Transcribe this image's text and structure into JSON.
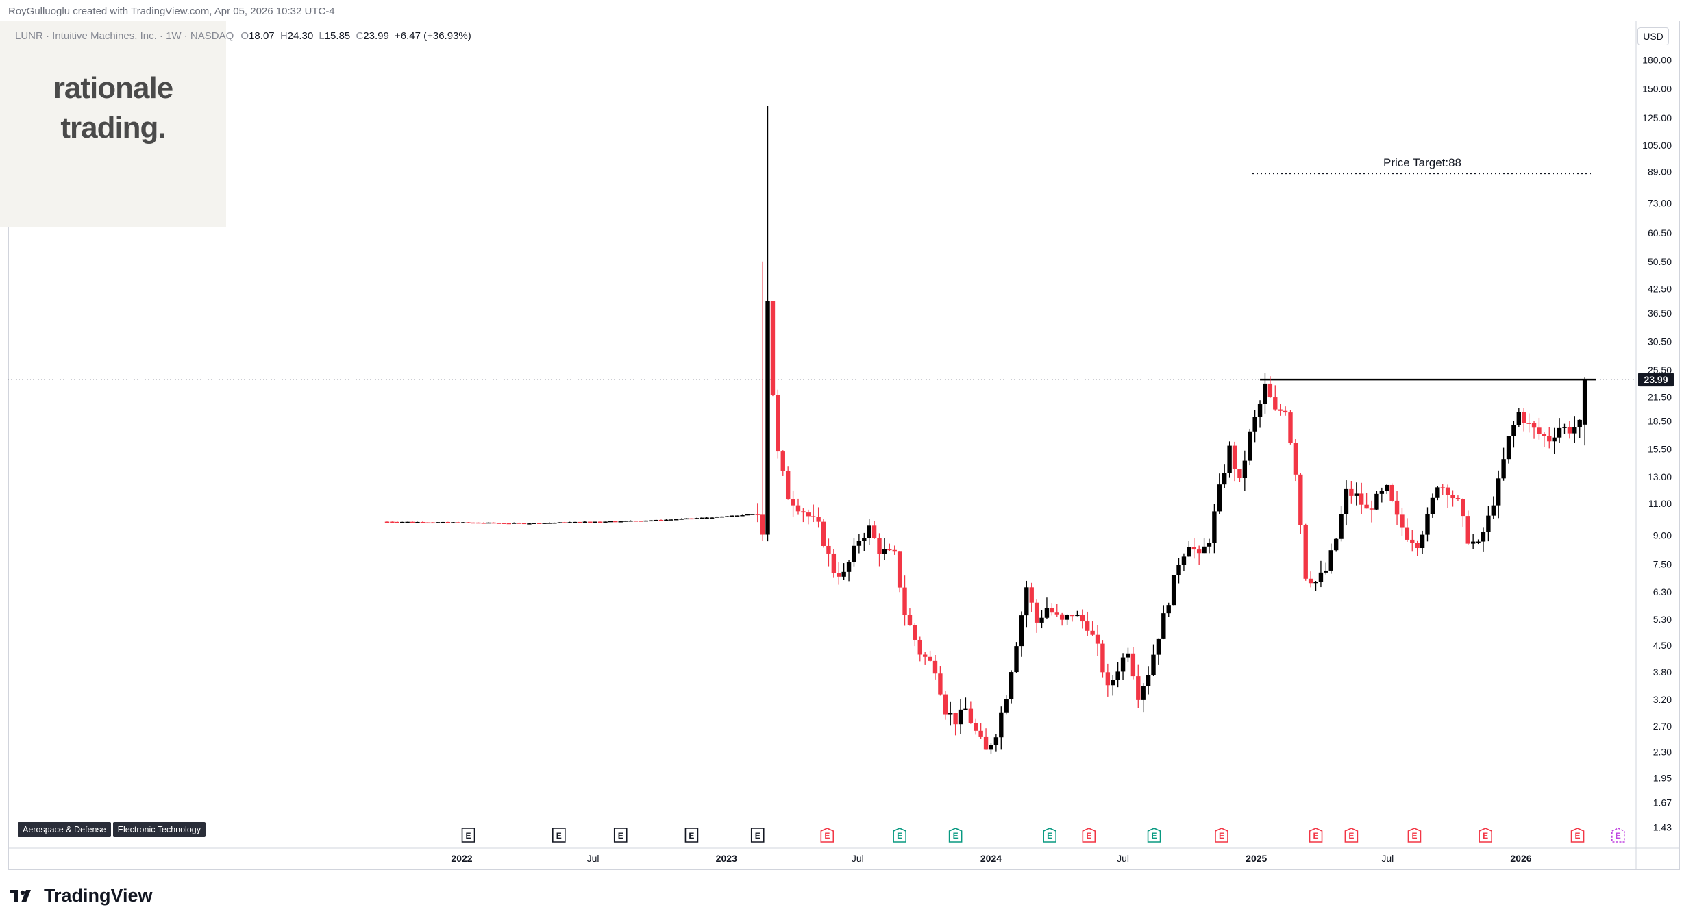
{
  "header": {
    "created_by": "RoyGulluoglu created with TradingView.com, Apr 05, 2026 10:32 UTC-4"
  },
  "legend": {
    "symbol": "LUNR · Intuitive Machines, Inc. · 1W · NASDAQ",
    "open_label": "O",
    "open": "18.07",
    "high_label": "H",
    "high": "24.30",
    "low_label": "L",
    "low": "15.85",
    "close_label": "C",
    "close": "23.99",
    "change": "+6.47 (+36.93%)"
  },
  "logo": {
    "line1": "rationale",
    "line2": "trading."
  },
  "tags": [
    "Aerospace & Defense",
    "Electronic Technology"
  ],
  "axis": {
    "currency": "USD",
    "last_price": "23.99",
    "price_ticks": [
      "180.00",
      "150.00",
      "125.00",
      "105.00",
      "89.00",
      "73.00",
      "60.50",
      "50.50",
      "42.50",
      "36.50",
      "30.50",
      "25.50",
      "21.50",
      "18.50",
      "15.50",
      "13.00",
      "11.00",
      "9.00",
      "7.50",
      "6.30",
      "5.30",
      "4.50",
      "3.80",
      "3.20",
      "2.70",
      "2.30",
      "1.95",
      "1.67",
      "1.43"
    ],
    "time_ticks": [
      "2022",
      "Jul",
      "2023",
      "Jul",
      "2024",
      "Jul",
      "2025",
      "Jul",
      "2026"
    ]
  },
  "annotation": {
    "price_target_label": "Price Target:88"
  },
  "footer": {
    "brand": "TradingView"
  },
  "colors": {
    "up": "#000000",
    "down": "#f23645",
    "earnings_future": "#089981",
    "price_badge": "#131722"
  },
  "chart_data": {
    "type": "candlestick",
    "title": "LUNR · Intuitive Machines, Inc. · 1W · NASDAQ",
    "scale": "log",
    "ylim": [
      1.43,
      180
    ],
    "interval": "1W",
    "current": {
      "open": 18.07,
      "high": 24.3,
      "low": 15.85,
      "close": 23.99,
      "change": 6.47,
      "change_pct": 36.93
    },
    "resistance_level": 23.99,
    "price_target": 88,
    "price_path": [
      [
        "2021-09-20",
        9.8
      ],
      [
        "2022-01-03",
        9.75
      ],
      [
        "2022-04-01",
        9.7
      ],
      [
        "2022-07-01",
        9.8
      ],
      [
        "2022-10-01",
        9.9
      ],
      [
        "2022-12-20",
        10.1
      ],
      [
        "2023-02-13",
        10.3
      ],
      [
        "2023-02-20",
        9.3
      ],
      [
        "2023-02-27",
        40
      ],
      [
        "2023-03-06",
        22
      ],
      [
        "2023-03-13",
        15
      ],
      [
        "2023-03-27",
        11.5
      ],
      [
        "2023-04-17",
        10.5
      ],
      [
        "2023-05-08",
        9.5
      ],
      [
        "2023-05-29",
        7.2
      ],
      [
        "2023-06-12",
        7.0
      ],
      [
        "2023-07-03",
        8.8
      ],
      [
        "2023-07-17",
        9.4
      ],
      [
        "2023-07-31",
        8.2
      ],
      [
        "2023-08-21",
        7.9
      ],
      [
        "2023-09-04",
        5.5
      ],
      [
        "2023-09-25",
        4.3
      ],
      [
        "2023-10-16",
        3.9
      ],
      [
        "2023-10-30",
        3.0
      ],
      [
        "2023-11-13",
        2.8
      ],
      [
        "2023-11-27",
        3.0
      ],
      [
        "2023-12-11",
        2.6
      ],
      [
        "2023-12-25",
        2.3
      ],
      [
        "2024-01-08",
        2.6
      ],
      [
        "2024-01-22",
        3.3
      ],
      [
        "2024-02-05",
        4.6
      ],
      [
        "2024-02-19",
        6.5
      ],
      [
        "2024-03-04",
        5.2
      ],
      [
        "2024-03-18",
        5.7
      ],
      [
        "2024-04-08",
        5.2
      ],
      [
        "2024-04-22",
        5.5
      ],
      [
        "2024-05-13",
        5.1
      ],
      [
        "2024-05-27",
        4.4
      ],
      [
        "2024-06-10",
        3.4
      ],
      [
        "2024-06-24",
        3.9
      ],
      [
        "2024-07-08",
        4.4
      ],
      [
        "2024-07-22",
        3.3
      ],
      [
        "2024-08-05",
        3.8
      ],
      [
        "2024-08-19",
        4.8
      ],
      [
        "2024-09-02",
        6.0
      ],
      [
        "2024-09-16",
        7.6
      ],
      [
        "2024-09-30",
        8.6
      ],
      [
        "2024-10-14",
        7.8
      ],
      [
        "2024-10-28",
        8.8
      ],
      [
        "2024-11-11",
        12.0
      ],
      [
        "2024-11-25",
        15.5
      ],
      [
        "2024-12-09",
        12.5
      ],
      [
        "2024-12-23",
        17.0
      ],
      [
        "2025-01-06",
        20.5
      ],
      [
        "2025-01-13",
        23.0
      ],
      [
        "2025-01-27",
        19.5
      ],
      [
        "2025-02-10",
        20.0
      ],
      [
        "2025-02-24",
        13.5
      ],
      [
        "2025-03-10",
        7.0
      ],
      [
        "2025-03-24",
        6.7
      ],
      [
        "2025-04-07",
        7.2
      ],
      [
        "2025-04-21",
        8.8
      ],
      [
        "2025-05-05",
        11.8
      ],
      [
        "2025-05-19",
        11.5
      ],
      [
        "2025-06-02",
        10.5
      ],
      [
        "2025-06-16",
        11.3
      ],
      [
        "2025-06-30",
        12.0
      ],
      [
        "2025-07-14",
        10.0
      ],
      [
        "2025-07-28",
        9.0
      ],
      [
        "2025-08-11",
        8.6
      ],
      [
        "2025-08-25",
        10.0
      ],
      [
        "2025-09-08",
        12.5
      ],
      [
        "2025-09-22",
        12.0
      ],
      [
        "2025-10-06",
        11.0
      ],
      [
        "2025-10-20",
        8.8
      ],
      [
        "2025-11-03",
        8.4
      ],
      [
        "2025-11-17",
        10.0
      ],
      [
        "2025-12-01",
        12.5
      ],
      [
        "2025-12-15",
        16.5
      ],
      [
        "2025-12-29",
        19.5
      ],
      [
        "2026-01-12",
        18.0
      ],
      [
        "2026-01-26",
        17.0
      ],
      [
        "2026-02-09",
        16.5
      ],
      [
        "2026-02-23",
        17.8
      ],
      [
        "2026-03-09",
        17.5
      ],
      [
        "2026-03-23",
        18.07
      ],
      [
        "2026-03-30",
        23.99
      ]
    ],
    "spike_highs": [
      [
        "2023-02-27",
        135
      ],
      [
        "2023-02-20",
        50.5
      ]
    ],
    "earnings_markers": [
      {
        "date": "2022-01-10",
        "kind": "past"
      },
      {
        "date": "2022-05-15",
        "kind": "past"
      },
      {
        "date": "2022-08-08",
        "kind": "past"
      },
      {
        "date": "2022-11-14",
        "kind": "past"
      },
      {
        "date": "2023-02-13",
        "kind": "past"
      },
      {
        "date": "2023-05-20",
        "kind": "miss"
      },
      {
        "date": "2023-08-28",
        "kind": "beat"
      },
      {
        "date": "2023-11-13",
        "kind": "beat"
      },
      {
        "date": "2024-03-22",
        "kind": "beat"
      },
      {
        "date": "2024-05-15",
        "kind": "miss"
      },
      {
        "date": "2024-08-13",
        "kind": "beat"
      },
      {
        "date": "2024-11-14",
        "kind": "miss"
      },
      {
        "date": "2025-03-24",
        "kind": "miss"
      },
      {
        "date": "2025-05-12",
        "kind": "miss"
      },
      {
        "date": "2025-08-07",
        "kind": "miss"
      },
      {
        "date": "2025-11-13",
        "kind": "miss"
      },
      {
        "date": "2026-03-20",
        "kind": "miss"
      },
      {
        "date": "2026-05-15",
        "kind": "upcoming"
      }
    ]
  }
}
